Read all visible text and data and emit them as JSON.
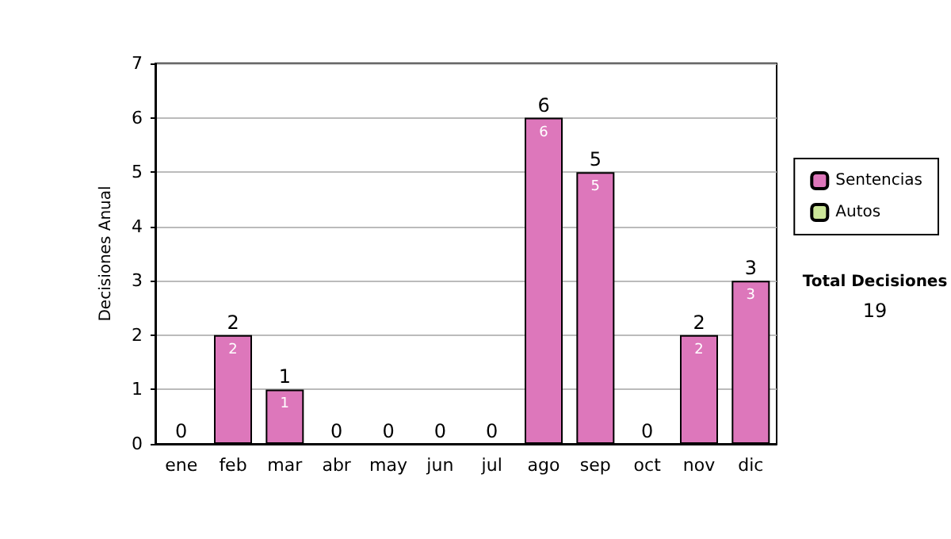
{
  "chart_data": {
    "type": "bar",
    "stacked": true,
    "ylabel": "Decisiones Anual",
    "categories": [
      "ene",
      "feb",
      "mar",
      "abr",
      "may",
      "jun",
      "jul",
      "ago",
      "sep",
      "oct",
      "nov",
      "dic"
    ],
    "series": [
      {
        "name": "Sentencias",
        "color": "#dd77bb",
        "values": [
          0,
          2,
          1,
          0,
          0,
          0,
          0,
          6,
          5,
          0,
          2,
          3
        ],
        "value_labels": [
          null,
          "2",
          "1",
          null,
          null,
          null,
          null,
          "6",
          "5",
          null,
          "2",
          "3"
        ]
      },
      {
        "name": "Autos",
        "color": "#cce699",
        "values": [
          0,
          0,
          0,
          0,
          0,
          0,
          0,
          0,
          0,
          0,
          0,
          0
        ]
      }
    ],
    "totals": [
      "0",
      "2",
      "1",
      "0",
      "0",
      "0",
      "0",
      "6",
      "5",
      "0",
      "2",
      "3"
    ],
    "ylim": [
      0,
      7
    ],
    "yticks": [
      0,
      1,
      2,
      3,
      4,
      5,
      6,
      7
    ],
    "grid": "y",
    "legend": "right",
    "annotations": [
      "Total Decisiones",
      "19"
    ]
  }
}
